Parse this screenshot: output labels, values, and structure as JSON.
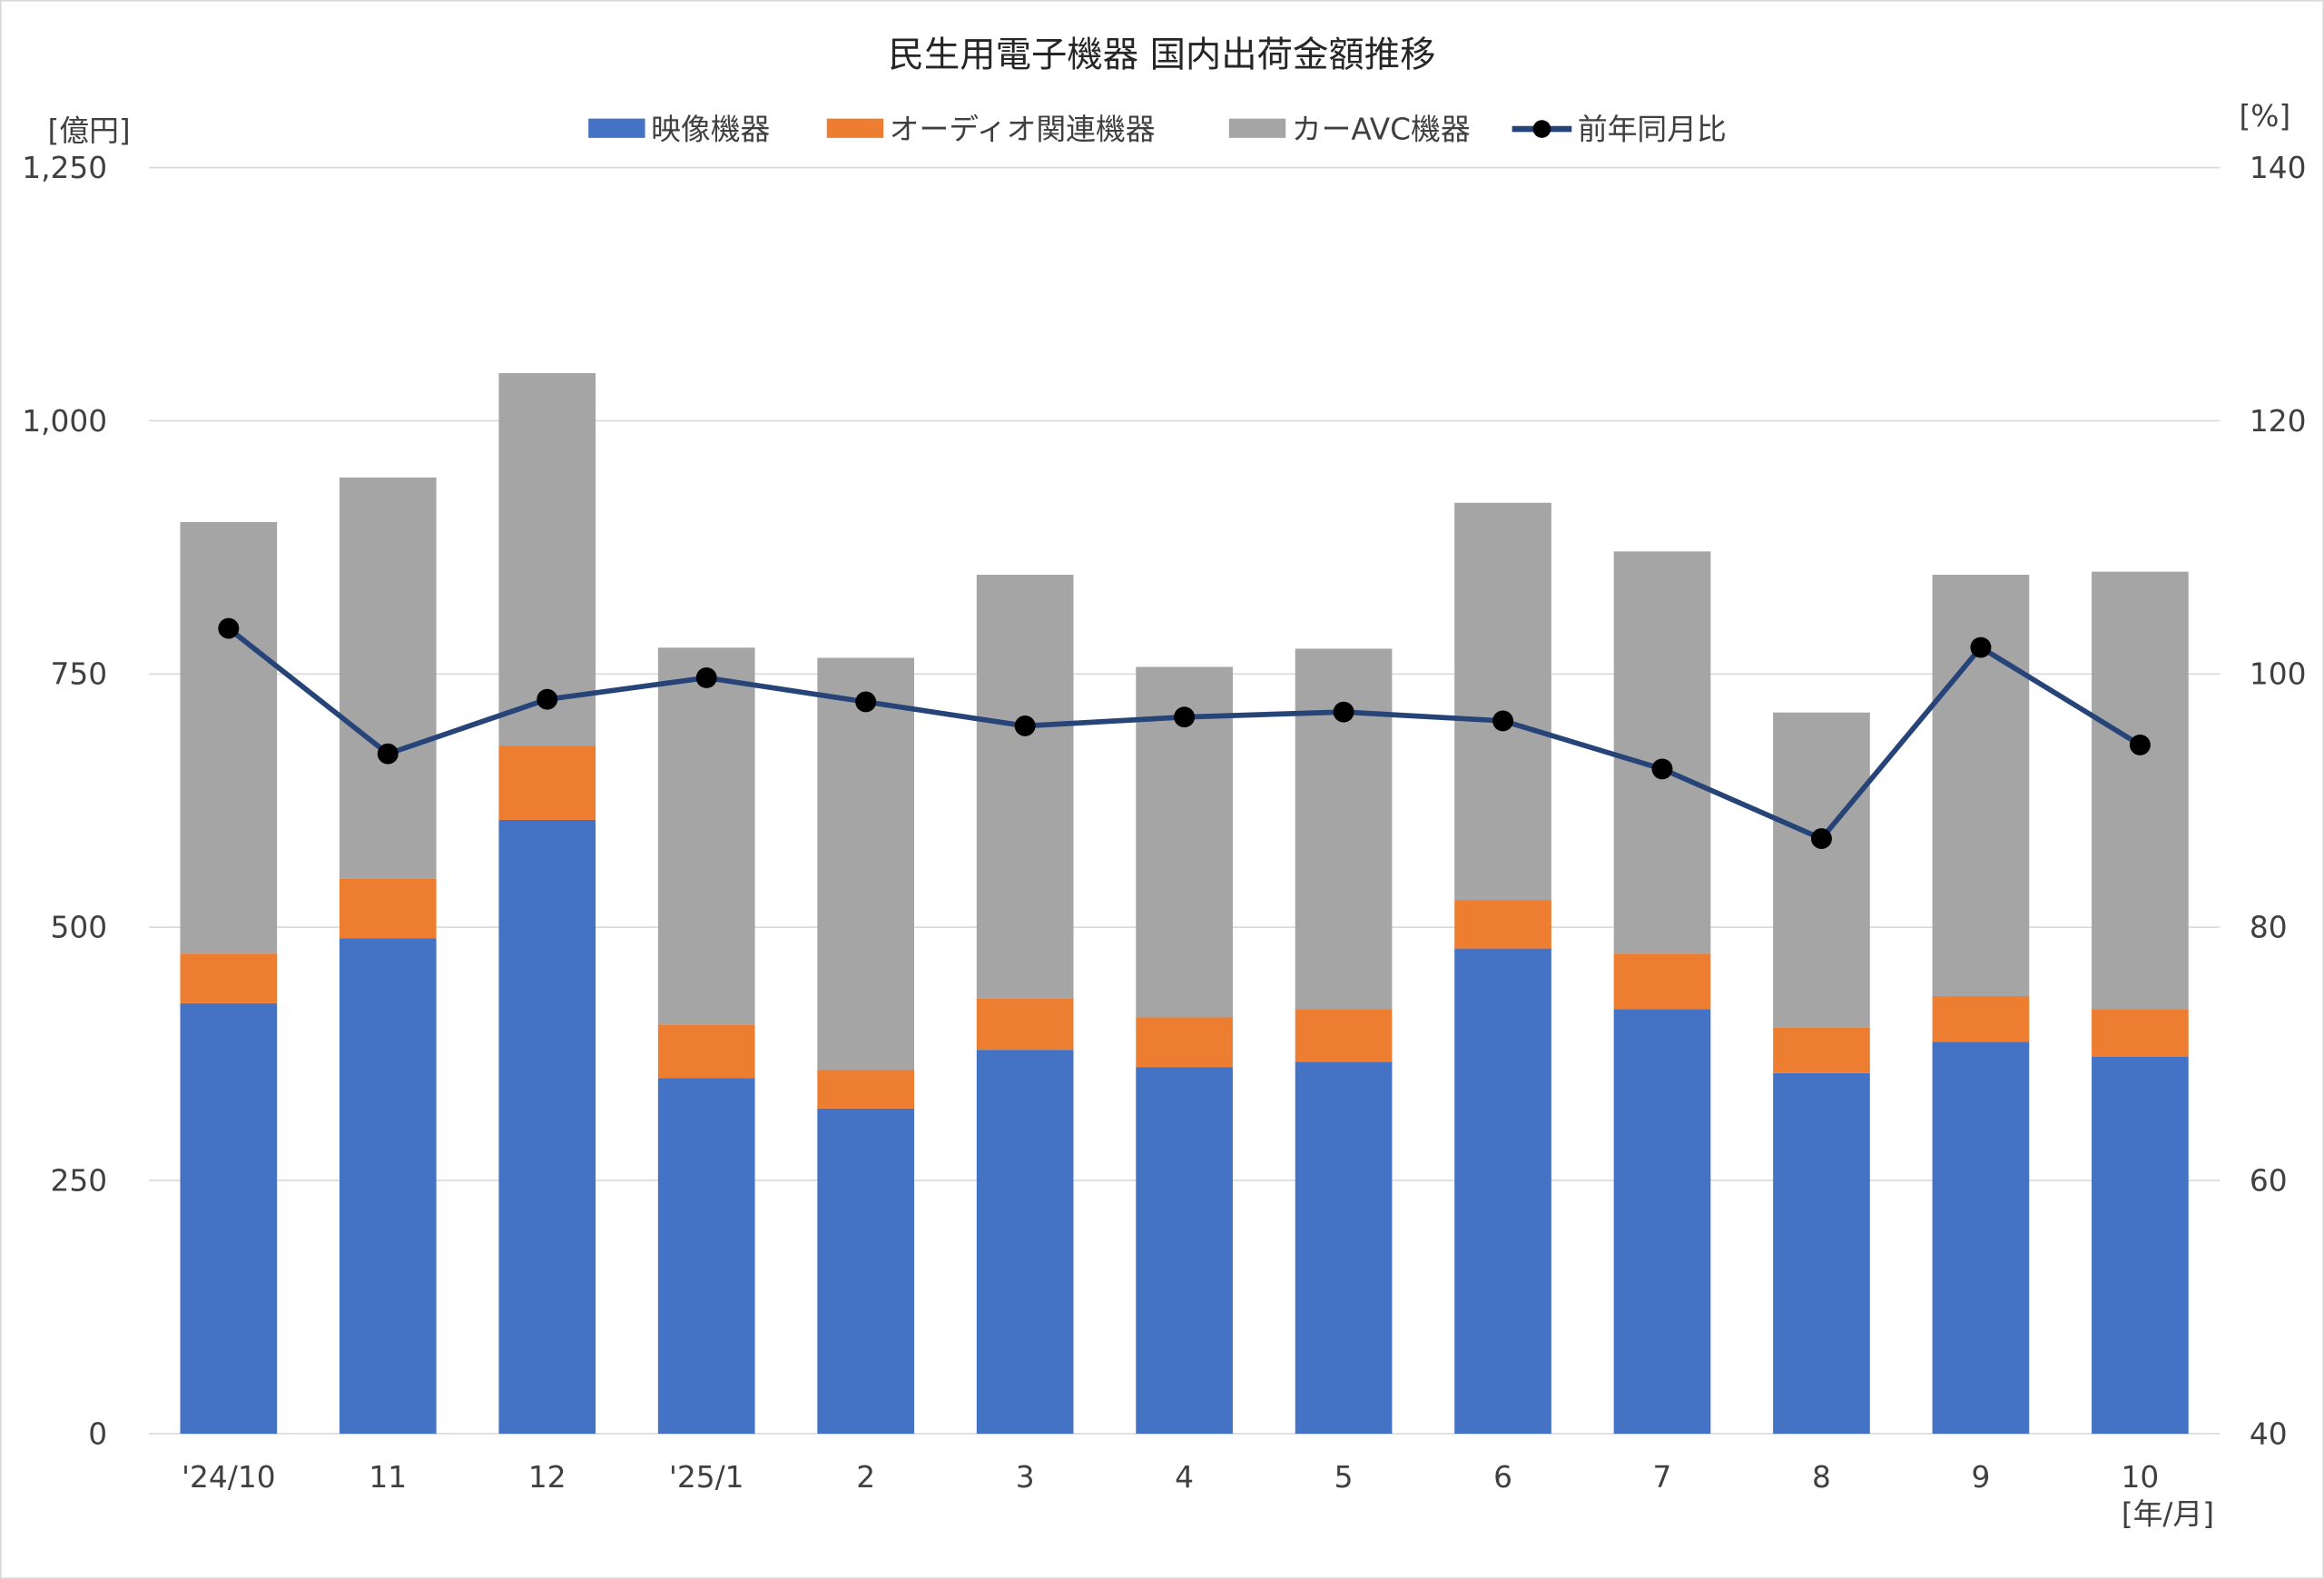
{
  "chart_data": {
    "type": "bar",
    "stacked": true,
    "title": "民生用電子機器 国内出荷金額推移",
    "ylabel": "[億円]",
    "y2label": "[%]",
    "xlabel": "[年/月]",
    "ylim": [
      0,
      1250
    ],
    "y2lim": [
      40,
      140
    ],
    "yticks": [
      "0",
      "250",
      "500",
      "750",
      "1,000",
      "1,250"
    ],
    "y2ticks": [
      "40",
      "60",
      "80",
      "100",
      "120",
      "140"
    ],
    "grid": true,
    "legend_position": "top",
    "categories": [
      "'24/10",
      "11",
      "12",
      "'25/1",
      "2",
      "3",
      "4",
      "5",
      "6",
      "7",
      "8",
      "9",
      "10"
    ],
    "series": [
      {
        "name": "映像機器",
        "type": "bar",
        "color": "#4472C4",
        "values": [
          425,
          489,
          606,
          351,
          321,
          379,
          362,
          367,
          479,
          419,
          356,
          387,
          372
        ]
      },
      {
        "name": "オーディオ関連機器",
        "type": "bar",
        "color": "#ED7D31",
        "values": [
          49,
          59,
          73,
          53,
          38,
          51,
          49,
          52,
          48,
          55,
          45,
          45,
          47
        ]
      },
      {
        "name": "カーAVC機器",
        "type": "bar",
        "color": "#A5A5A5",
        "values": [
          426,
          396,
          368,
          372,
          407,
          418,
          346,
          356,
          392,
          397,
          311,
          416,
          432
        ]
      },
      {
        "name": "前年同月比",
        "type": "line",
        "axis": "right",
        "color": "#264478",
        "values": [
          103.6,
          93.7,
          98.0,
          99.7,
          97.8,
          95.9,
          96.6,
          97.0,
          96.3,
          92.5,
          87.0,
          102.1,
          94.4
        ]
      }
    ]
  }
}
